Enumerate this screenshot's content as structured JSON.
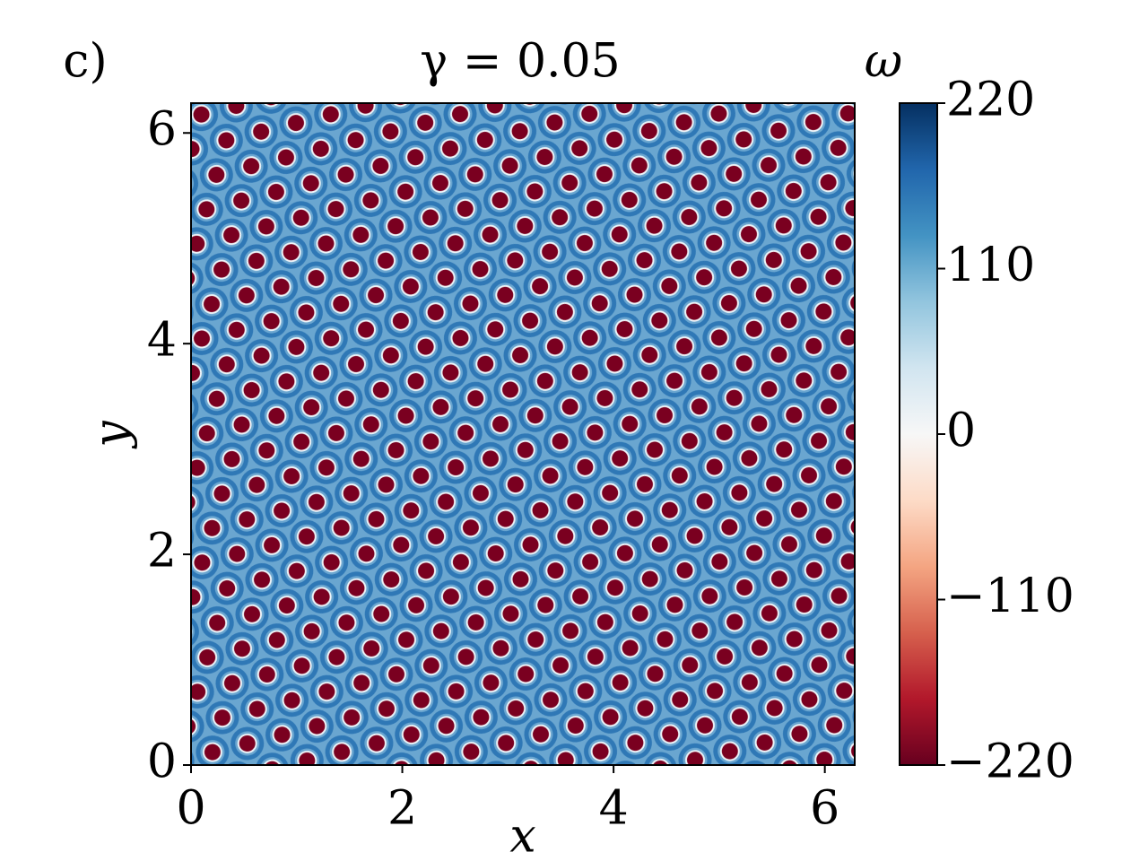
{
  "chart_data": {
    "type": "heatmap",
    "panel_label": "c)",
    "title": "γ = 0.05",
    "x_label": "x",
    "y_label": "y",
    "colorbar_label": "ω",
    "colormap": "RdBu",
    "xlim": [
      0,
      6.283
    ],
    "ylim": [
      0,
      6.283
    ],
    "xticks": [
      0,
      2,
      4,
      6
    ],
    "yticks": [
      0,
      2,
      4,
      6
    ],
    "clim": [
      -220,
      220
    ],
    "cticks": [
      {
        "value": -220,
        "label": "−220"
      },
      {
        "value": -110,
        "label": "−110"
      },
      0,
      110,
      220
    ]
  }
}
